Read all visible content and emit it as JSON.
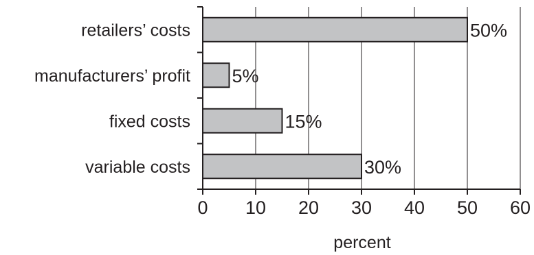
{
  "chart_data": {
    "type": "bar",
    "orientation": "horizontal",
    "categories": [
      "retailers’ costs",
      "manufacturers’ profit",
      "fixed costs",
      "variable costs"
    ],
    "values": [
      50,
      5,
      15,
      30
    ],
    "data_labels": [
      "50%",
      "5%",
      "15%",
      "30%"
    ],
    "title": "",
    "xlabel": "percent",
    "ylabel": "",
    "xlim": [
      0,
      60
    ],
    "x_ticks": [
      0,
      10,
      20,
      30,
      40,
      50,
      60
    ],
    "grid": "vertical",
    "legend": "none",
    "colors": {
      "bar_fill": "#c2c3c5",
      "bar_stroke": "#231f20",
      "axis": "#231f20",
      "grid": "#231f20",
      "text": "#231f20"
    }
  }
}
